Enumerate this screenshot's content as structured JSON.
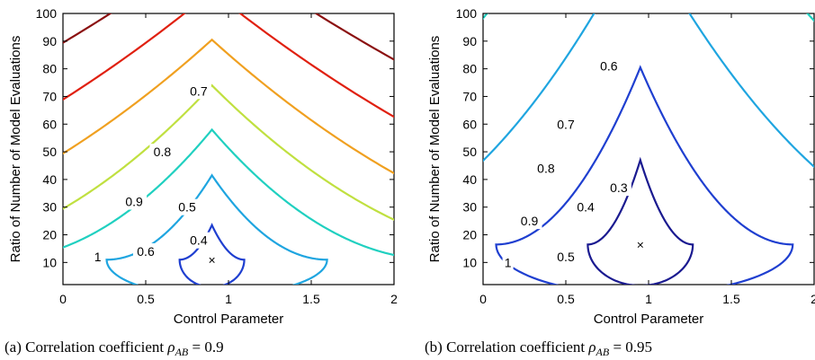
{
  "chart_data": [
    {
      "type": "contour",
      "caption": {
        "prefix": "(a)  Correlation coefficient ",
        "symbol": "ρ",
        "subscript": "AB",
        "suffix": " = 0.9"
      },
      "xlabel": "Control Parameter",
      "ylabel": "Ratio of Number of Model Evaluations",
      "xlim": [
        0,
        2
      ],
      "ylim": [
        2,
        100
      ],
      "xticks": [
        0,
        0.5,
        1,
        1.5,
        2
      ],
      "xtick_labels": [
        "0",
        "0.5",
        "1",
        "1.5",
        "2"
      ],
      "yticks": [
        10,
        20,
        30,
        40,
        50,
        60,
        70,
        80,
        90,
        100
      ],
      "yticks_labels": [
        "10",
        "20",
        "30",
        "40",
        "50",
        "60",
        "70",
        "80",
        "90",
        "100"
      ],
      "minimum": {
        "x": 0.9,
        "y": 11,
        "marker": "×"
      },
      "levels": [
        {
          "value": 0.4,
          "label": "0.4",
          "color": "#1f3fd0",
          "peak": 23.5,
          "xl": 0.72,
          "xr": 1.08,
          "label_pos": [
            0.82,
            18
          ]
        },
        {
          "value": 0.5,
          "label": "0.5",
          "color": "#1fa5e0",
          "peak": 41.5,
          "xl": 0.58,
          "xr": 1.25,
          "label_pos": [
            0.75,
            30
          ]
        },
        {
          "value": 0.6,
          "label": "0.6",
          "color": "#20d0c0",
          "peak": 58,
          "xl": 0.45,
          "xr": 1.37,
          "label_pos": [
            0.5,
            14
          ]
        },
        {
          "value": 0.7,
          "label": "0.7",
          "color": "#c0e040",
          "peak": 74,
          "xl": 0.38,
          "xr": 1.46,
          "label_pos": [
            0.82,
            72
          ]
        },
        {
          "value": 0.8,
          "label": "0.8",
          "color": "#f0a020",
          "peak": 90.5,
          "xl": 0.27,
          "xr": 1.53,
          "label_pos": [
            0.6,
            50
          ]
        },
        {
          "value": 0.9,
          "label": "0.9",
          "color": "#e02010",
          "peak": 108,
          "xl": 0.2,
          "xr": 1.62,
          "label_pos": [
            0.43,
            32
          ]
        },
        {
          "value": 1,
          "label": "1",
          "color": "#8b1010",
          "peak": 125,
          "xl": 0.1,
          "xr": 1.72,
          "label_pos": [
            0.21,
            12
          ]
        }
      ]
    },
    {
      "type": "contour",
      "caption": {
        "prefix": "(b)  Correlation coefficient ",
        "symbol": "ρ",
        "subscript": "AB",
        "suffix": " = 0.95"
      },
      "xlabel": "Control Parameter",
      "ylabel": "Ratio of Number of Model Evaluations",
      "xlim": [
        0,
        2
      ],
      "ylim": [
        2,
        100
      ],
      "xticks": [
        0,
        0.5,
        1,
        1.5,
        2
      ],
      "xtick_labels": [
        "0",
        "0.5",
        "1",
        "1.5",
        "2"
      ],
      "yticks": [
        10,
        20,
        30,
        40,
        50,
        60,
        70,
        80,
        90,
        100
      ],
      "yticks_labels": [
        "10",
        "20",
        "30",
        "40",
        "50",
        "60",
        "70",
        "80",
        "90",
        "100"
      ],
      "minimum": {
        "x": 0.95,
        "y": 16.5,
        "marker": "×"
      },
      "levels": [
        {
          "value": 0.3,
          "label": "0.3",
          "color": "#1a1a90",
          "peak": 47,
          "xl": 0.72,
          "xr": 1.18,
          "label_pos": [
            0.82,
            37
          ]
        },
        {
          "value": 0.4,
          "label": "0.4",
          "color": "#1f3fd0",
          "peak": 80.5,
          "xl": 0.6,
          "xr": 1.32,
          "label_pos": [
            0.62,
            30
          ]
        },
        {
          "value": 0.5,
          "label": "0.5",
          "color": "#1fa5e0",
          "peak": 130,
          "xl": 0.48,
          "xr": 1.45,
          "label_pos": [
            0.5,
            12
          ]
        },
        {
          "value": 0.6,
          "label": "0.6",
          "color": "#20d0c0",
          "peak": 180,
          "xl": 0.4,
          "xr": 1.55,
          "label_pos": [
            0.76,
            81
          ]
        },
        {
          "value": 0.7,
          "label": "0.7",
          "color": "#c0e040",
          "peak": 240,
          "xl": 0.32,
          "xr": 1.62,
          "label_pos": [
            0.5,
            60
          ]
        },
        {
          "value": 0.8,
          "label": "0.8",
          "color": "#f0a020",
          "peak": 300,
          "xl": 0.24,
          "xr": 1.7,
          "label_pos": [
            0.38,
            44
          ]
        },
        {
          "value": 0.9,
          "label": "0.9",
          "color": "#e02010",
          "peak": 380,
          "xl": 0.16,
          "xr": 1.76,
          "label_pos": [
            0.28,
            25
          ]
        },
        {
          "value": 1,
          "label": "1",
          "color": "#8b1010",
          "peak": 480,
          "xl": 0.08,
          "xr": 1.84,
          "label_pos": [
            0.15,
            10
          ]
        }
      ]
    }
  ]
}
